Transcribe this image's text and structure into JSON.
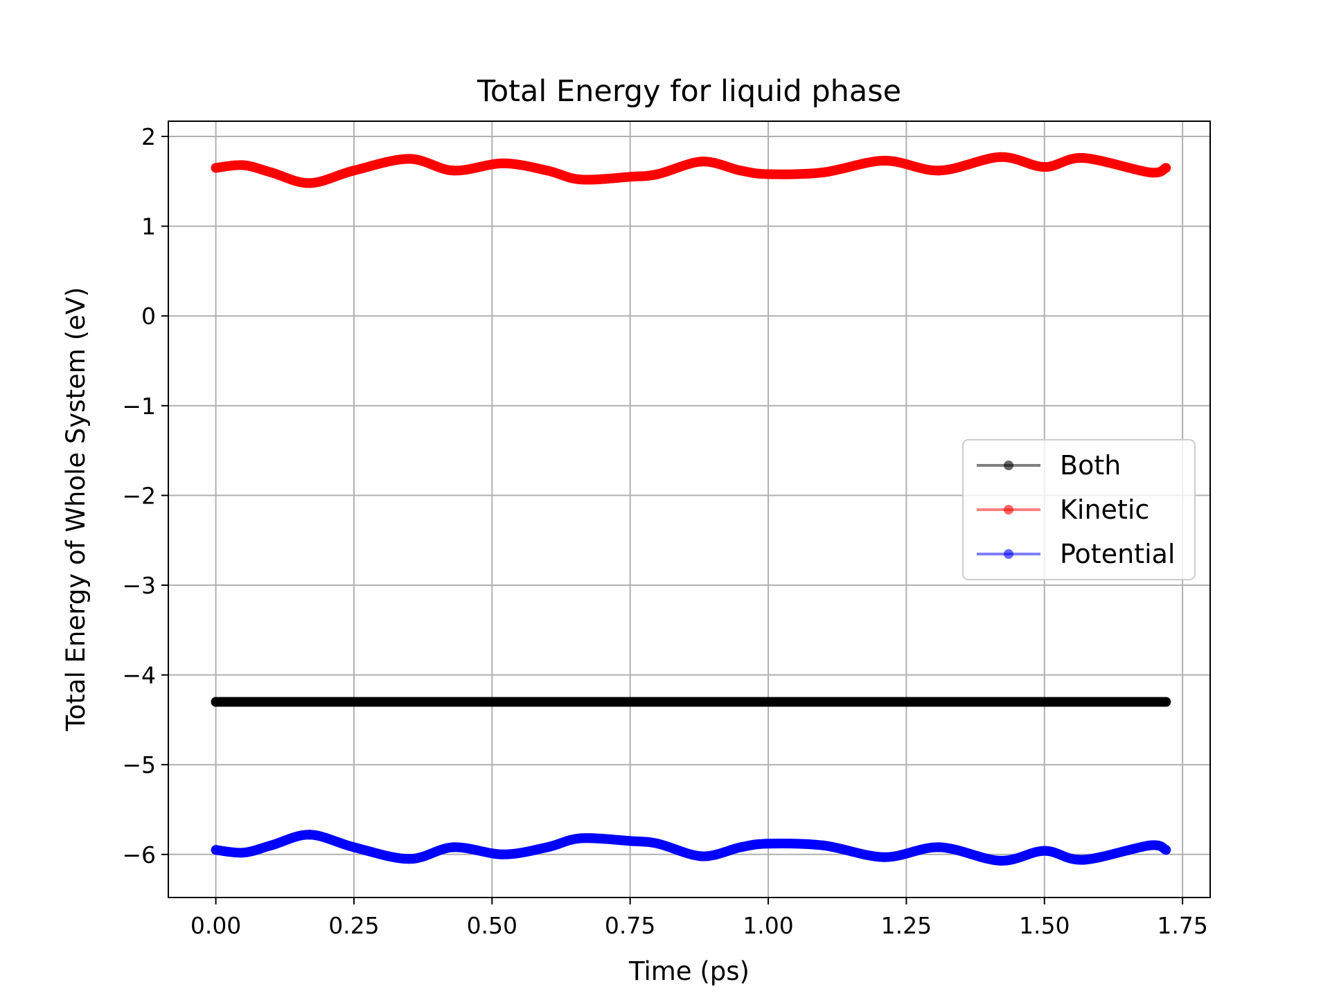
{
  "chart_data": {
    "type": "line",
    "title": "Total Energy for liquid phase",
    "xlabel": "Time (ps)",
    "ylabel": "Total Energy of Whole System (eV)",
    "xlim": [
      -0.086,
      1.8
    ],
    "ylim": [
      -6.48,
      2.17
    ],
    "xticks": [
      0.0,
      0.25,
      0.5,
      0.75,
      1.0,
      1.25,
      1.5,
      1.75
    ],
    "xtick_labels": [
      "0.00",
      "0.25",
      "0.50",
      "0.75",
      "1.00",
      "1.25",
      "1.50",
      "1.75"
    ],
    "yticks": [
      2,
      1,
      0,
      -1,
      -2,
      -3,
      -4,
      -5,
      -6
    ],
    "ytick_labels": [
      "2",
      "1",
      "0",
      "−1",
      "−2",
      "−3",
      "−4",
      "−5",
      "−6"
    ],
    "grid": true,
    "legend_position": "center-right",
    "series": [
      {
        "name": "Both",
        "color": "#000000",
        "x": [
          0.0,
          0.05,
          0.1,
          0.17,
          0.25,
          0.35,
          0.43,
          0.52,
          0.6,
          0.66,
          0.75,
          0.8,
          0.88,
          0.95,
          1.0,
          1.1,
          1.21,
          1.31,
          1.42,
          1.5,
          1.57,
          1.69,
          1.72
        ],
        "y": [
          -4.3,
          -4.3,
          -4.3,
          -4.3,
          -4.3,
          -4.3,
          -4.3,
          -4.3,
          -4.3,
          -4.3,
          -4.3,
          -4.3,
          -4.3,
          -4.3,
          -4.3,
          -4.3,
          -4.3,
          -4.3,
          -4.3,
          -4.3,
          -4.3,
          -4.3,
          -4.3
        ]
      },
      {
        "name": "Kinetic",
        "color": "#ff0000",
        "x": [
          0.0,
          0.05,
          0.1,
          0.17,
          0.25,
          0.35,
          0.43,
          0.52,
          0.6,
          0.66,
          0.75,
          0.8,
          0.88,
          0.95,
          1.0,
          1.1,
          1.21,
          1.31,
          1.42,
          1.5,
          1.57,
          1.69,
          1.72
        ],
        "y": [
          1.65,
          1.68,
          1.6,
          1.48,
          1.62,
          1.75,
          1.62,
          1.7,
          1.62,
          1.52,
          1.55,
          1.58,
          1.72,
          1.62,
          1.58,
          1.6,
          1.73,
          1.62,
          1.77,
          1.66,
          1.76,
          1.6,
          1.65
        ]
      },
      {
        "name": "Potential",
        "color": "#0000ff",
        "x": [
          0.0,
          0.05,
          0.1,
          0.17,
          0.25,
          0.35,
          0.43,
          0.52,
          0.6,
          0.66,
          0.75,
          0.8,
          0.88,
          0.95,
          1.0,
          1.1,
          1.21,
          1.31,
          1.42,
          1.5,
          1.57,
          1.69,
          1.72
        ],
        "y": [
          -5.95,
          -5.98,
          -5.9,
          -5.78,
          -5.92,
          -6.05,
          -5.92,
          -6.0,
          -5.92,
          -5.82,
          -5.85,
          -5.88,
          -6.02,
          -5.92,
          -5.88,
          -5.9,
          -6.03,
          -5.92,
          -6.07,
          -5.96,
          -6.06,
          -5.9,
          -5.95
        ]
      }
    ]
  }
}
